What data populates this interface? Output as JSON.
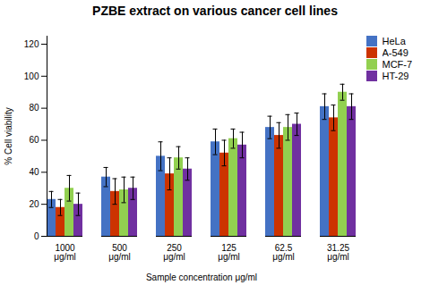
{
  "chart_data": {
    "type": "bar",
    "title": "PZBE extract on various cancer cell lines",
    "xlabel": "Sample concentration μg/ml",
    "ylabel": "% Cell viability",
    "categories": [
      "1000\nμg/ml",
      "500\nμg/ml",
      "250\nμg/ml",
      "125\nμg/ml",
      "62.5\nμg/ml",
      "31.25\nμg/ml"
    ],
    "series": [
      {
        "name": "HeLa",
        "color": "#4472C4",
        "values": [
          23,
          37,
          50,
          59,
          68,
          81
        ],
        "errors": [
          5,
          6,
          9,
          8,
          7,
          8
        ]
      },
      {
        "name": "A-549",
        "color": "#CC3300",
        "values": [
          18,
          28,
          39,
          52,
          63,
          74
        ],
        "errors": [
          5,
          8,
          10,
          8,
          8,
          8
        ]
      },
      {
        "name": "MCF-7",
        "color": "#92D050",
        "values": [
          30,
          29,
          49,
          61,
          68,
          90
        ],
        "errors": [
          8,
          8,
          7,
          6,
          8,
          5
        ]
      },
      {
        "name": "HT-29",
        "color": "#7030A0",
        "values": [
          20,
          30,
          42,
          57,
          70,
          81
        ],
        "errors": [
          7,
          7,
          7,
          8,
          7,
          8
        ]
      }
    ],
    "ylim": [
      0,
      125
    ],
    "yticks": [
      0,
      20,
      40,
      60,
      80,
      100,
      120
    ],
    "grid": false,
    "legend": "right"
  }
}
